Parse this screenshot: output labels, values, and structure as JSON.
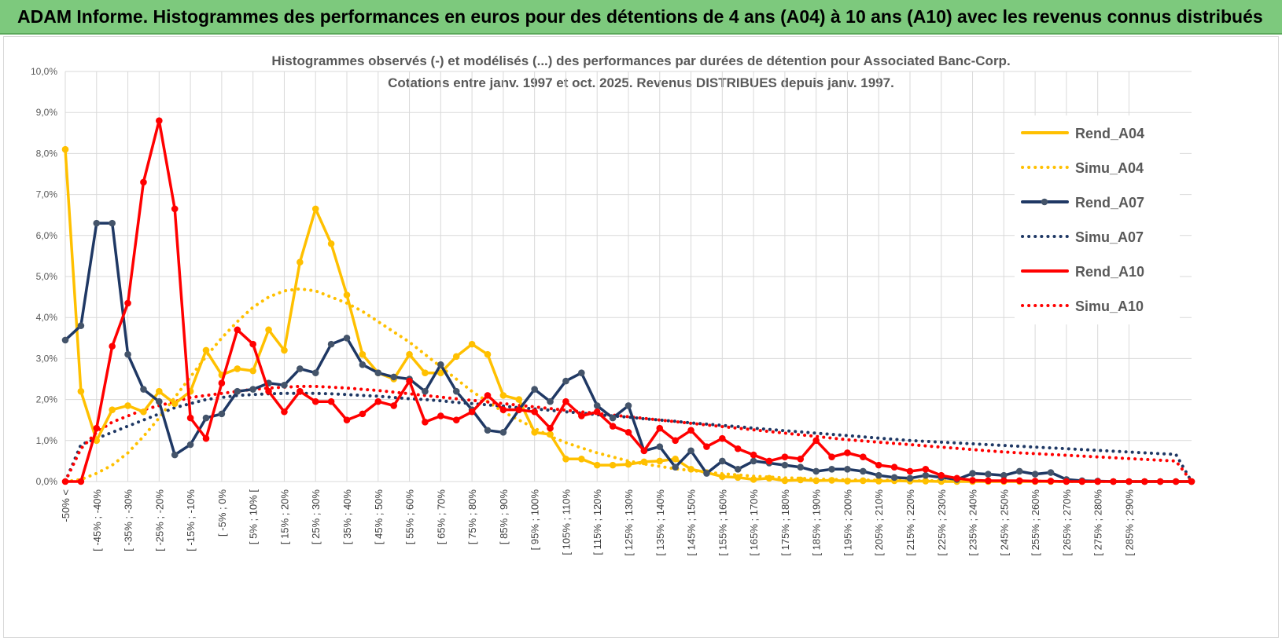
{
  "banner": {
    "title": "ADAM Informe. Histogrammes des performances en euros pour des détentions de 4 ans (A04) à 10 ans (A10) avec les revenus connus distribués"
  },
  "colors": {
    "banner_bg": "#7dc97d",
    "A04": "#ffc000",
    "A07": "#1f3864",
    "A10": "#ff0000",
    "grid": "#d9d9d9",
    "axis_text": "#595959"
  },
  "chart_data": {
    "type": "line",
    "title": "Histogrammes observés (-) et modélisés (...) des performances par durées de détention pour Associated Banc-Corp.",
    "subtitle": "Cotations entre janv. 1997 et oct. 2025.  Revenus DISTRIBUES depuis janv. 1997.",
    "xlabel": "",
    "ylabel": "",
    "ylim": [
      0,
      10
    ],
    "y_ticks": [
      "0,0%",
      "1,0%",
      "2,0%",
      "3,0%",
      "4,0%",
      "5,0%",
      "6,0%",
      "7,0%",
      "8,0%",
      "9,0%",
      "10,0%"
    ],
    "grid": true,
    "legend_position": "right",
    "x_tick_labels": [
      "-50% <",
      "[ -45% ; -40%",
      "[ -35% ; -30%",
      "[ -25% ; -20%",
      "[ -15% ; -10%",
      "[ -5% ; 0%",
      "[ 5% ; 10% [",
      "[ 15% ; 20%",
      "[ 25% ; 30%",
      "[ 35% ; 40%",
      "[ 45% ; 50%",
      "[ 55% ; 60%",
      "[ 65% ; 70%",
      "[ 75% ; 80%",
      "[ 85% ; 90%",
      "[ 95% ; 100%",
      "[ 105% ; 110%",
      "[ 115% ; 120%",
      "[ 125% ; 130%",
      "[ 135% ; 140%",
      "[ 145% ; 150%",
      "[ 155% ; 160%",
      "[ 165% ; 170%",
      "[ 175% ; 180%",
      "[ 185% ; 190%",
      "[ 195% ; 200%",
      "[ 205% ; 210%",
      "[ 215% ; 220%",
      "[ 225% ; 230%",
      "[ 235% ; 240%",
      "[ 245% ; 250%",
      "[ 255% ; 260%",
      "[ 265% ; 270%",
      "[ 275% ; 280%",
      "[ 285% ; 290%"
    ],
    "x_tick_every": 2,
    "series": [
      {
        "name": "Rend_A04",
        "style": "solid",
        "color": "#ffc000",
        "values": [
          8.1,
          2.2,
          1.0,
          1.75,
          1.85,
          1.7,
          2.2,
          1.9,
          2.2,
          3.2,
          2.6,
          2.75,
          2.7,
          3.7,
          3.2,
          5.35,
          6.65,
          5.8,
          4.55,
          3.1,
          2.65,
          2.5,
          3.1,
          2.65,
          2.65,
          3.05,
          3.35,
          3.1,
          2.1,
          2.0,
          1.2,
          1.15,
          0.55,
          0.55,
          0.4,
          0.4,
          0.42,
          0.48,
          0.5,
          0.55,
          0.3,
          0.22,
          0.12,
          0.1,
          0.05,
          0.08,
          0.02,
          0.04,
          0.02,
          0.03,
          0.01,
          0.02,
          0.01,
          0.02,
          0.01,
          0.01,
          0.0,
          0.0,
          0.0,
          0.0,
          0.0,
          0.0,
          0.0,
          0.0,
          0.0,
          0.0,
          0.0,
          0.0,
          0.0,
          0.0,
          0.0,
          0.0,
          0.0
        ]
      },
      {
        "name": "Simu_A04",
        "style": "dotted",
        "color": "#ffc000",
        "values": [
          0.0,
          0.05,
          0.2,
          0.4,
          0.7,
          1.1,
          1.55,
          2.05,
          2.55,
          3.05,
          3.5,
          3.9,
          4.25,
          4.5,
          4.65,
          4.7,
          4.65,
          4.5,
          4.35,
          4.15,
          3.9,
          3.65,
          3.4,
          3.1,
          2.8,
          2.5,
          2.2,
          1.95,
          1.7,
          1.5,
          1.3,
          1.1,
          0.95,
          0.82,
          0.7,
          0.6,
          0.5,
          0.43,
          0.37,
          0.31,
          0.27,
          0.23,
          0.19,
          0.16,
          0.13,
          0.11,
          0.09,
          0.08,
          0.06,
          0.05,
          0.04,
          0.04,
          0.03,
          0.03,
          0.02,
          0.02,
          0.02,
          0.01,
          0.01,
          0.01,
          0.01,
          0.01,
          0.01,
          0.0,
          0.0,
          0.0,
          0.0,
          0.0,
          0.0,
          0.0,
          0.0,
          0.0,
          0.0
        ]
      },
      {
        "name": "Rend_A07",
        "style": "solid",
        "color": "#1f3864",
        "values": [
          3.45,
          3.8,
          6.3,
          6.3,
          3.1,
          2.25,
          1.95,
          0.65,
          0.9,
          1.55,
          1.65,
          2.2,
          2.25,
          2.4,
          2.35,
          2.75,
          2.65,
          3.35,
          3.5,
          2.85,
          2.65,
          2.55,
          2.5,
          2.2,
          2.85,
          2.2,
          1.75,
          1.25,
          1.2,
          1.75,
          2.25,
          1.95,
          2.45,
          2.65,
          1.85,
          1.55,
          1.85,
          0.75,
          0.85,
          0.35,
          0.75,
          0.2,
          0.5,
          0.3,
          0.5,
          0.45,
          0.4,
          0.35,
          0.25,
          0.3,
          0.3,
          0.25,
          0.15,
          0.1,
          0.08,
          0.15,
          0.1,
          0.05,
          0.2,
          0.18,
          0.15,
          0.25,
          0.18,
          0.22,
          0.05,
          0.02,
          0.01,
          0.0,
          0.0,
          0.0,
          0.0,
          0.0,
          0.0
        ]
      },
      {
        "name": "Simu_A07",
        "style": "dotted",
        "color": "#1f3864",
        "values": [
          0.0,
          0.9,
          1.05,
          1.2,
          1.35,
          1.5,
          1.65,
          1.8,
          1.9,
          2.0,
          2.05,
          2.1,
          2.12,
          2.14,
          2.15,
          2.15,
          2.15,
          2.14,
          2.12,
          2.1,
          2.08,
          2.05,
          2.02,
          2.0,
          1.97,
          1.93,
          1.9,
          1.87,
          1.84,
          1.8,
          1.77,
          1.74,
          1.7,
          1.67,
          1.63,
          1.6,
          1.57,
          1.53,
          1.5,
          1.47,
          1.43,
          1.4,
          1.37,
          1.34,
          1.3,
          1.27,
          1.24,
          1.21,
          1.18,
          1.15,
          1.12,
          1.09,
          1.06,
          1.03,
          1.0,
          0.98,
          0.96,
          0.94,
          0.92,
          0.9,
          0.88,
          0.86,
          0.84,
          0.82,
          0.8,
          0.78,
          0.76,
          0.74,
          0.72,
          0.7,
          0.68,
          0.66,
          0.0
        ]
      },
      {
        "name": "Rend_A10",
        "style": "solid",
        "color": "#ff0000",
        "values": [
          0.0,
          0.0,
          1.3,
          3.3,
          4.35,
          7.3,
          8.8,
          6.65,
          1.55,
          1.05,
          2.4,
          3.7,
          3.35,
          2.2,
          1.7,
          2.2,
          1.95,
          1.95,
          1.5,
          1.65,
          1.95,
          1.85,
          2.45,
          1.45,
          1.6,
          1.5,
          1.7,
          2.1,
          1.75,
          1.75,
          1.7,
          1.3,
          1.95,
          1.6,
          1.7,
          1.35,
          1.2,
          0.75,
          1.3,
          1.0,
          1.25,
          0.85,
          1.05,
          0.8,
          0.65,
          0.5,
          0.6,
          0.55,
          1.0,
          0.6,
          0.7,
          0.6,
          0.4,
          0.35,
          0.25,
          0.3,
          0.15,
          0.08,
          0.03,
          0.02,
          0.02,
          0.02,
          0.01,
          0.01,
          0.0,
          0.0,
          0.0,
          0.0,
          0.0,
          0.0,
          0.0,
          0.0,
          0.0
        ]
      },
      {
        "name": "Simu_A10",
        "style": "dotted",
        "color": "#ff0000",
        "values": [
          0.0,
          0.8,
          1.2,
          1.45,
          1.6,
          1.75,
          1.85,
          1.95,
          2.05,
          2.1,
          2.15,
          2.2,
          2.25,
          2.28,
          2.3,
          2.32,
          2.32,
          2.3,
          2.28,
          2.25,
          2.22,
          2.18,
          2.14,
          2.1,
          2.06,
          2.02,
          1.98,
          1.94,
          1.9,
          1.86,
          1.82,
          1.78,
          1.74,
          1.7,
          1.66,
          1.62,
          1.58,
          1.54,
          1.5,
          1.46,
          1.42,
          1.38,
          1.34,
          1.3,
          1.26,
          1.22,
          1.18,
          1.14,
          1.1,
          1.06,
          1.02,
          0.99,
          0.96,
          0.93,
          0.9,
          0.87,
          0.84,
          0.81,
          0.78,
          0.75,
          0.72,
          0.7,
          0.68,
          0.66,
          0.64,
          0.62,
          0.6,
          0.58,
          0.56,
          0.54,
          0.52,
          0.5,
          0.0
        ]
      }
    ]
  }
}
